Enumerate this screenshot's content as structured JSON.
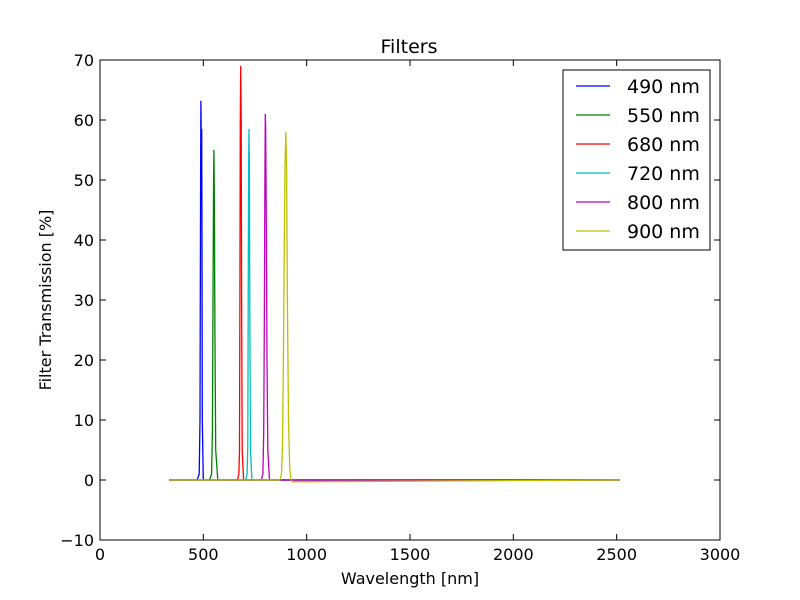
{
  "chart_data": {
    "type": "line",
    "title": "Filters",
    "xlabel": "Wavelength [nm]",
    "ylabel": "Filter Transmission [%]",
    "xlim": [
      0,
      3000
    ],
    "ylim": [
      -10,
      70
    ],
    "xticks": [
      0,
      500,
      1000,
      1500,
      2000,
      2500,
      3000
    ],
    "xtick_labels": [
      "0",
      "500",
      "1000",
      "1500",
      "2000",
      "2500",
      "3000"
    ],
    "yticks": [
      -10,
      0,
      10,
      20,
      30,
      40,
      50,
      60,
      70
    ],
    "ytick_labels": [
      "−10",
      "0",
      "10",
      "20",
      "30",
      "40",
      "50",
      "60",
      "70"
    ],
    "grid": false,
    "legend_position": "top-right",
    "series": [
      {
        "name": "490 nm",
        "color": "#0000ff",
        "x": [
          335,
          470,
          480,
          484,
          487,
          488,
          490,
          492,
          493,
          495,
          500,
          510,
          2515
        ],
        "y": [
          0,
          0,
          1,
          10,
          50,
          63.2,
          56,
          58.5,
          45,
          10,
          0,
          0,
          0
        ]
      },
      {
        "name": "550 nm",
        "color": "#008000",
        "x": [
          335,
          530,
          540,
          544,
          547,
          549,
          551,
          553,
          556,
          560,
          570,
          2515
        ],
        "y": [
          0,
          0,
          1,
          8,
          30,
          48,
          55,
          48,
          25,
          5,
          0,
          0
        ]
      },
      {
        "name": "680 nm",
        "color": "#ff0000",
        "x": [
          335,
          665,
          672,
          675,
          677,
          679,
          681,
          683,
          685,
          688,
          695,
          2515
        ],
        "y": [
          0,
          0,
          1,
          5,
          30,
          60,
          69,
          60,
          30,
          5,
          0,
          0
        ]
      },
      {
        "name": "720 nm",
        "color": "#00bfbf",
        "x": [
          335,
          705,
          712,
          715,
          717,
          719,
          721,
          723,
          725,
          728,
          735,
          2515
        ],
        "y": [
          0,
          0,
          1,
          6,
          30,
          52,
          58.5,
          52,
          28,
          5,
          0,
          0
        ]
      },
      {
        "name": "800 nm",
        "color": "#bf00bf",
        "x": [
          335,
          780,
          788,
          792,
          795,
          798,
          800,
          802,
          805,
          808,
          812,
          820,
          2515
        ],
        "y": [
          0,
          0,
          1,
          8,
          25,
          50,
          61,
          58,
          40,
          20,
          5,
          0,
          0
        ]
      },
      {
        "name": "900 nm",
        "color": "#bfbf00",
        "x": [
          335,
          870,
          878,
          883,
          887,
          891,
          895,
          899,
          903,
          907,
          912,
          918,
          925,
          930,
          935,
          2515
        ],
        "y": [
          0,
          0,
          1,
          6,
          18,
          35,
          52,
          58,
          52,
          30,
          10,
          2,
          0,
          -0.3,
          -0.3,
          0
        ]
      }
    ]
  }
}
